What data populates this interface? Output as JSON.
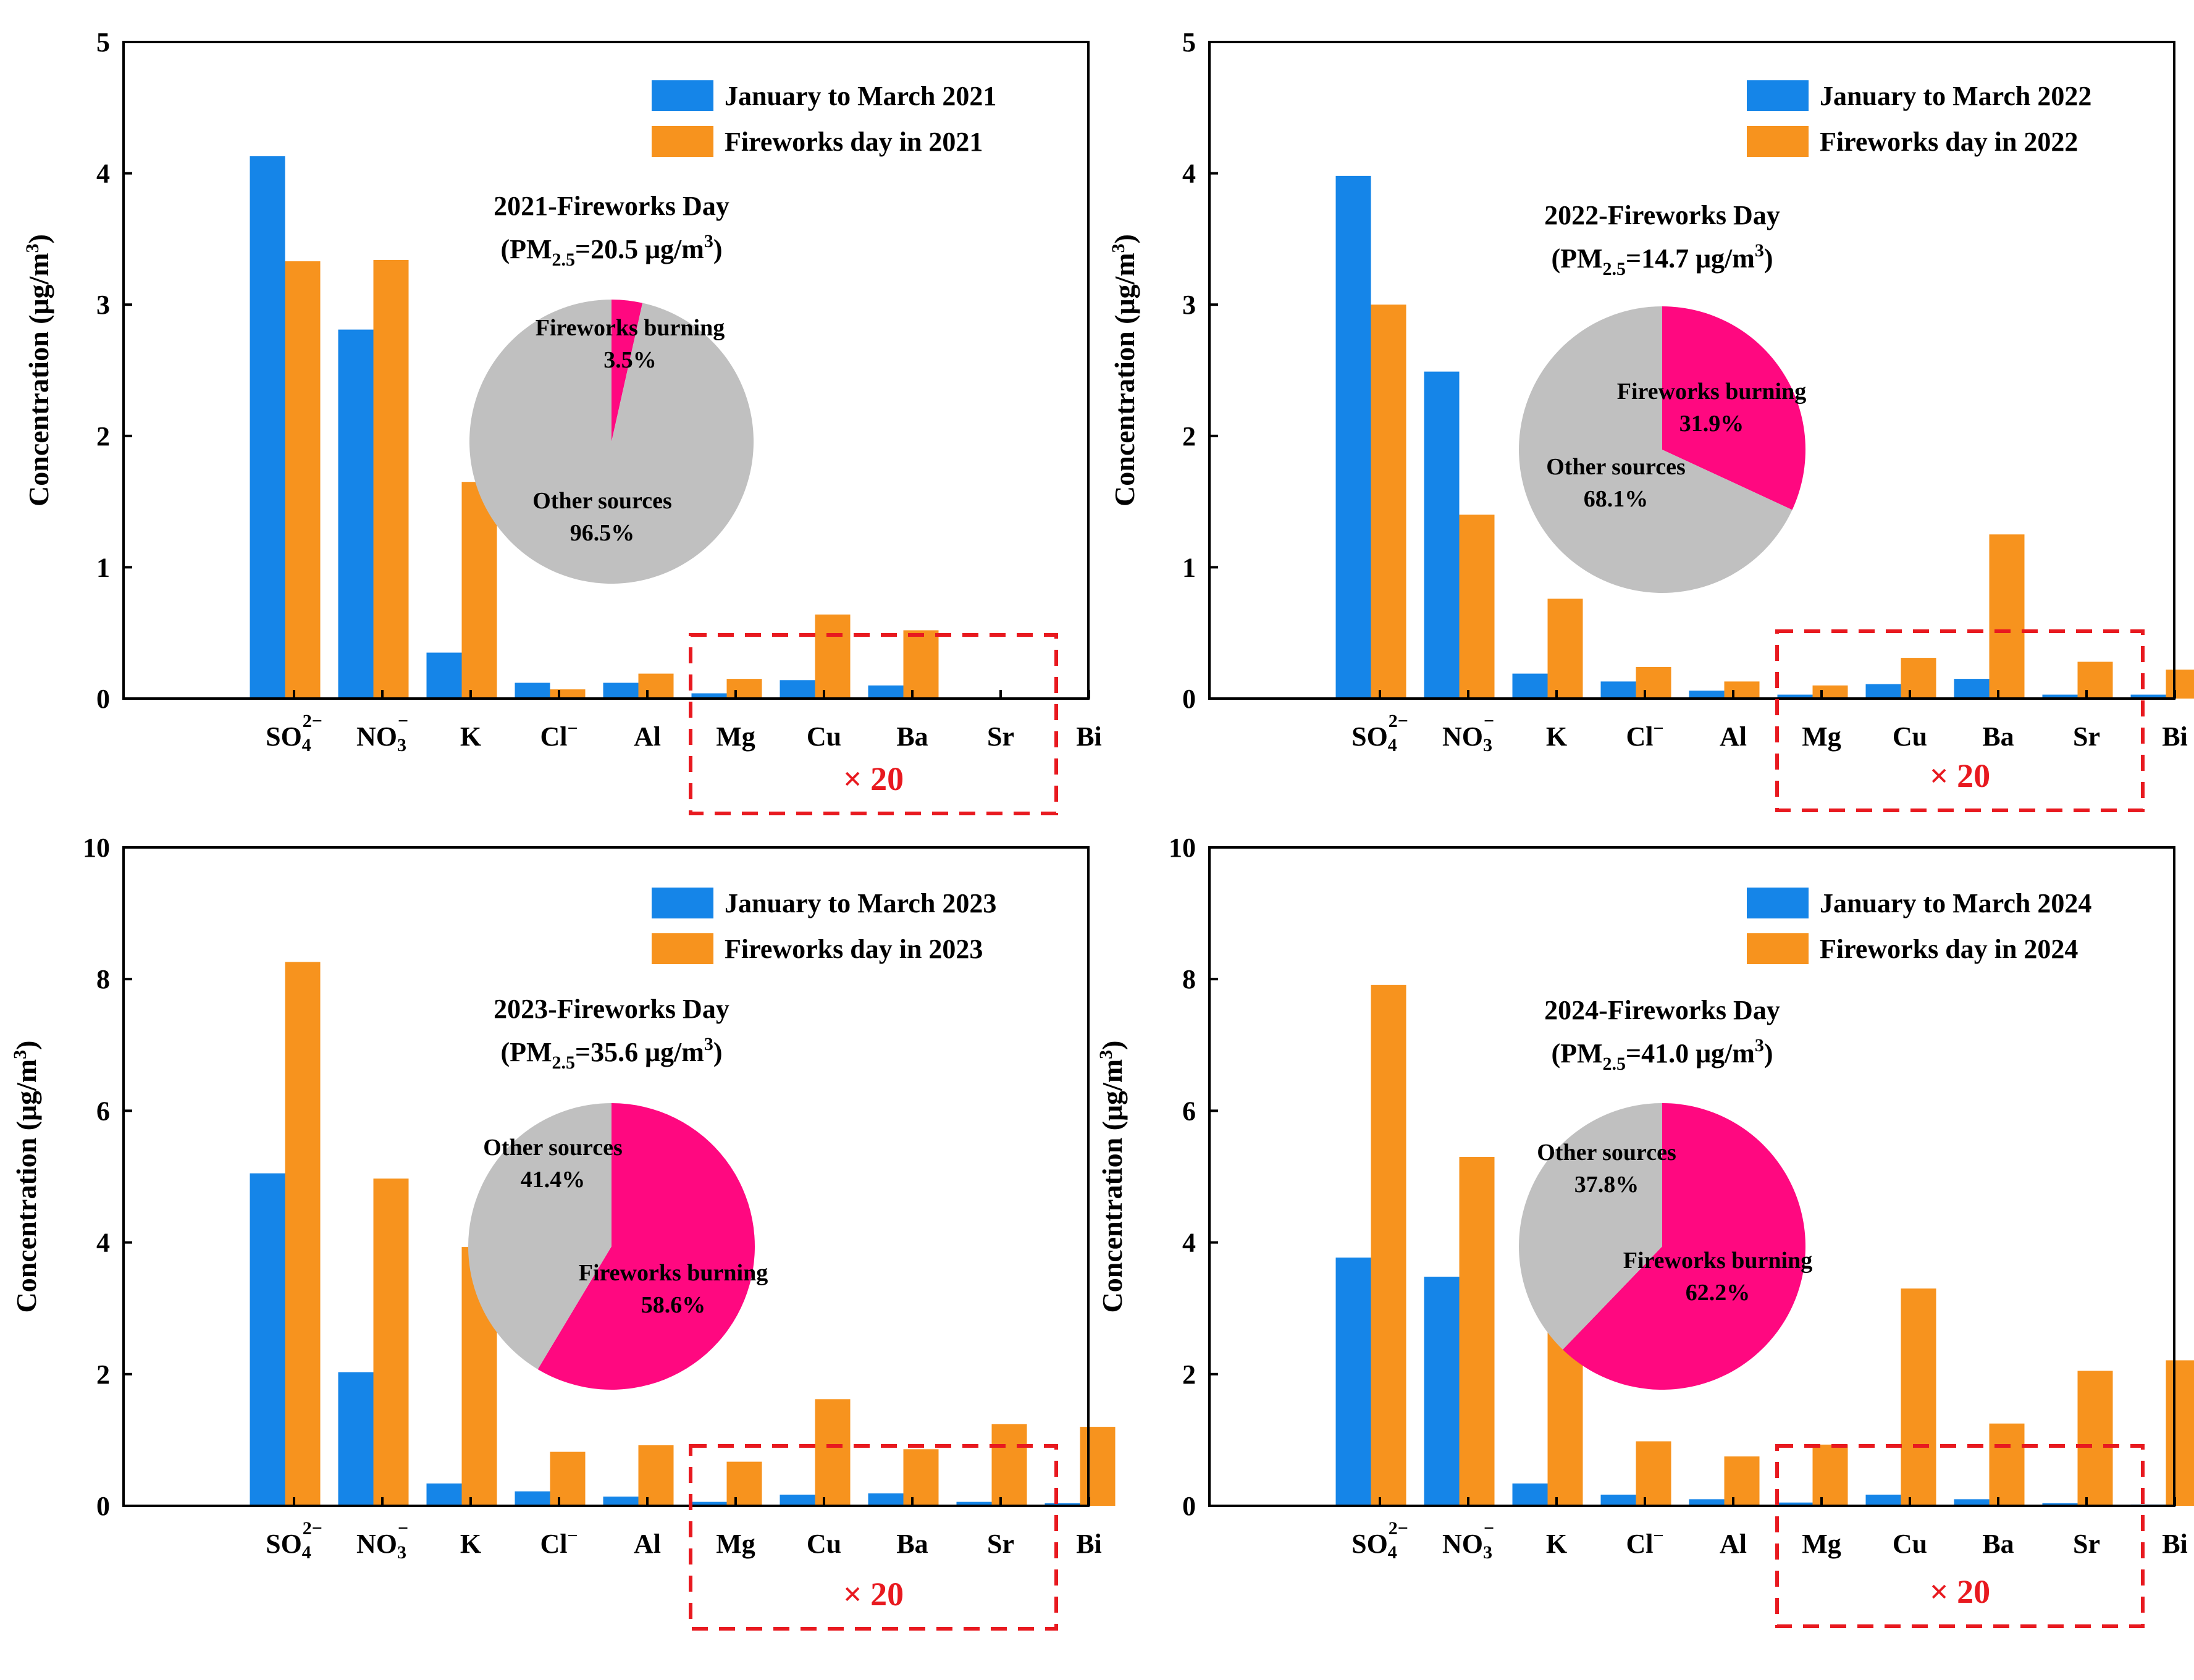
{
  "chart_data": [
    {
      "type": "bar",
      "categories": [
        "SO4",
        "NO3",
        "K",
        "Cl",
        "Al",
        "Mg",
        "Cu",
        "Ba",
        "Sr",
        "Bi"
      ],
      "category_labels": [
        {
          "base": "SO",
          "sub": "4",
          "sup": "2−"
        },
        {
          "base": "NO",
          "sub": "3",
          "sup": "−"
        },
        {
          "base": "K"
        },
        {
          "base": "Cl",
          "sup": "−"
        },
        {
          "base": "Al"
        },
        {
          "base": "Mg"
        },
        {
          "base": "Cu"
        },
        {
          "base": "Ba"
        },
        {
          "base": "Sr"
        },
        {
          "base": "Bi"
        }
      ],
      "series": [
        {
          "name": "January to March 2021",
          "color": "#1585e8",
          "values": [
            4.13,
            2.81,
            0.35,
            0.12,
            0.12,
            0.04,
            0.14,
            0.1,
            0,
            0
          ]
        },
        {
          "name": "Fireworks day in 2021",
          "color": "#f7931e",
          "values": [
            3.33,
            3.34,
            1.65,
            0.07,
            0.19,
            0.15,
            0.64,
            0.52,
            0,
            0
          ]
        }
      ],
      "ylabel": "Concentration (μg/m3)",
      "ylim": [
        0,
        5
      ],
      "yticks": [
        0,
        1,
        2,
        3,
        4,
        5
      ],
      "scaled_note": "× 20",
      "pie": {
        "title_year": "2021-Fireworks Day",
        "title_pm": "(PM2.5=20.5 μg/m3)",
        "title_pm_parts": {
          "open": "(PM",
          "sub": "2.5",
          "value": "=20.5 μg/m",
          "sup": "3",
          "close": ")"
        },
        "slices": [
          {
            "label": "Fireworks burning",
            "value": 3.5,
            "pct": "3.5%",
            "color": "#ff0880"
          },
          {
            "label": "Other sources",
            "value": 96.5,
            "pct": "96.5%",
            "color": "#c0c0c0"
          }
        ]
      }
    },
    {
      "type": "bar",
      "categories": [
        "SO4",
        "NO3",
        "K",
        "Cl",
        "Al",
        "Mg",
        "Cu",
        "Ba",
        "Sr",
        "Bi"
      ],
      "category_labels": [
        {
          "base": "SO",
          "sub": "4",
          "sup": "2−"
        },
        {
          "base": "NO",
          "sub": "3",
          "sup": "−"
        },
        {
          "base": "K"
        },
        {
          "base": "Cl",
          "sup": "−"
        },
        {
          "base": "Al"
        },
        {
          "base": "Mg"
        },
        {
          "base": "Cu"
        },
        {
          "base": "Ba"
        },
        {
          "base": "Sr"
        },
        {
          "base": "Bi"
        }
      ],
      "series": [
        {
          "name": "January to March 2022",
          "color": "#1585e8",
          "values": [
            3.98,
            2.49,
            0.19,
            0.13,
            0.06,
            0.03,
            0.11,
            0.15,
            0.03,
            0.03
          ]
        },
        {
          "name": "Fireworks day in 2022",
          "color": "#f7931e",
          "values": [
            3.0,
            1.4,
            0.76,
            0.24,
            0.13,
            0.1,
            0.31,
            1.25,
            0.28,
            0.22
          ]
        }
      ],
      "ylabel": "Concentration (μg/m3)",
      "ylim": [
        0,
        5
      ],
      "yticks": [
        0,
        1,
        2,
        3,
        4,
        5
      ],
      "scaled_note": "× 20",
      "pie": {
        "title_year": "2022-Fireworks Day",
        "title_pm": "(PM2.5=14.7 μg/m3)",
        "title_pm_parts": {
          "open": "(PM",
          "sub": "2.5",
          "value": "=14.7 μg/m",
          "sup": "3",
          "close": ")"
        },
        "slices": [
          {
            "label": "Fireworks burning",
            "value": 31.9,
            "pct": "31.9%",
            "color": "#ff0880"
          },
          {
            "label": "Other sources",
            "value": 68.1,
            "pct": "68.1%",
            "color": "#c0c0c0"
          }
        ]
      }
    },
    {
      "type": "bar",
      "categories": [
        "SO4",
        "NO3",
        "K",
        "Cl",
        "Al",
        "Mg",
        "Cu",
        "Ba",
        "Sr",
        "Bi"
      ],
      "category_labels": [
        {
          "base": "SO",
          "sub": "4",
          "sup": "2−"
        },
        {
          "base": "NO",
          "sub": "3",
          "sup": "−"
        },
        {
          "base": "K"
        },
        {
          "base": "Cl",
          "sup": "−"
        },
        {
          "base": "Al"
        },
        {
          "base": "Mg"
        },
        {
          "base": "Cu"
        },
        {
          "base": "Ba"
        },
        {
          "base": "Sr"
        },
        {
          "base": "Bi"
        }
      ],
      "series": [
        {
          "name": "January to March 2023",
          "color": "#1585e8",
          "values": [
            5.05,
            2.03,
            0.34,
            0.22,
            0.14,
            0.06,
            0.17,
            0.19,
            0.06,
            0.04
          ]
        },
        {
          "name": "Fireworks day in 2023",
          "color": "#f7931e",
          "values": [
            8.26,
            4.97,
            3.93,
            0.82,
            0.92,
            0.67,
            1.62,
            0.86,
            1.24,
            1.2
          ]
        }
      ],
      "ylabel": "Concentration (μg/m3)",
      "ylim": [
        0,
        10
      ],
      "yticks": [
        0,
        2,
        4,
        6,
        8,
        10
      ],
      "scaled_note": "× 20",
      "pie": {
        "title_year": "2023-Fireworks Day",
        "title_pm": "(PM2.5=35.6 μg/m3)",
        "title_pm_parts": {
          "open": "(PM",
          "sub": "2.5",
          "value": "=35.6 μg/m",
          "sup": "3",
          "close": ")"
        },
        "slices": [
          {
            "label": "Fireworks burning",
            "value": 58.6,
            "pct": "58.6%",
            "color": "#ff0880"
          },
          {
            "label": "Other sources",
            "value": 41.4,
            "pct": "41.4%",
            "color": "#c0c0c0"
          }
        ]
      }
    },
    {
      "type": "bar",
      "categories": [
        "SO4",
        "NO3",
        "K",
        "Cl",
        "Al",
        "Mg",
        "Cu",
        "Ba",
        "Sr",
        "Bi"
      ],
      "category_labels": [
        {
          "base": "SO",
          "sub": "4",
          "sup": "2−"
        },
        {
          "base": "NO",
          "sub": "3",
          "sup": "−"
        },
        {
          "base": "K"
        },
        {
          "base": "Cl",
          "sup": "−"
        },
        {
          "base": "Al"
        },
        {
          "base": "Mg"
        },
        {
          "base": "Cu"
        },
        {
          "base": "Ba"
        },
        {
          "base": "Sr"
        },
        {
          "base": "Bi"
        }
      ],
      "series": [
        {
          "name": "January to March 2024",
          "color": "#1585e8",
          "values": [
            3.77,
            3.48,
            0.34,
            0.17,
            0.1,
            0.05,
            0.17,
            0.1,
            0.04,
            0.02
          ]
        },
        {
          "name": "Fireworks day in 2024",
          "color": "#f7931e",
          "values": [
            7.91,
            5.3,
            5.12,
            0.98,
            0.75,
            0.93,
            3.3,
            1.25,
            2.05,
            2.21
          ]
        }
      ],
      "ylabel": "Concentration (μg/m3)",
      "ylim": [
        0,
        10
      ],
      "yticks": [
        0,
        2,
        4,
        6,
        8,
        10
      ],
      "scaled_note": "× 20",
      "pie": {
        "title_year": "2024-Fireworks Day",
        "title_pm": "(PM2.5=41.0 μg/m3)",
        "title_pm_parts": {
          "open": "(PM",
          "sub": "2.5",
          "value": "=41.0 μg/m",
          "sup": "3",
          "close": ")"
        },
        "slices": [
          {
            "label": "Fireworks burning",
            "value": 62.2,
            "pct": "62.2%",
            "color": "#ff0880"
          },
          {
            "label": "Other sources",
            "value": 37.8,
            "pct": "37.8%",
            "color": "#c0c0c0"
          }
        ]
      }
    }
  ]
}
